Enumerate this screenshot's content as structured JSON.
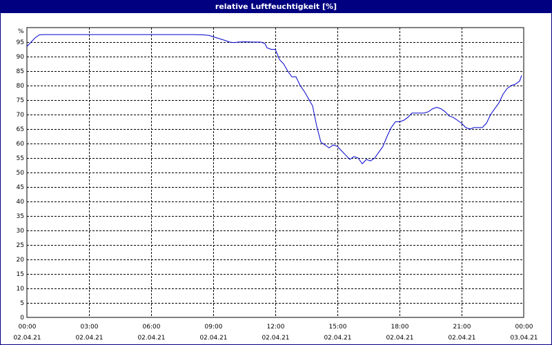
{
  "header": {
    "title": "relative Luftfeuchtigkeit [%]"
  },
  "chart_data": {
    "type": "line",
    "title": "relative Luftfeuchtigkeit [%]",
    "ylabel": "%",
    "ylim": [
      0,
      100
    ],
    "yticks": [
      0,
      5,
      10,
      15,
      20,
      25,
      30,
      35,
      40,
      45,
      50,
      55,
      60,
      65,
      70,
      75,
      80,
      85,
      90,
      95
    ],
    "xlim_hours": [
      0,
      24
    ],
    "xticks": [
      {
        "time": "00:00",
        "date": "02.04.21"
      },
      {
        "time": "03:00",
        "date": "02.04.21"
      },
      {
        "time": "06:00",
        "date": "02.04.21"
      },
      {
        "time": "09:00",
        "date": "02.04.21"
      },
      {
        "time": "12:00",
        "date": "02.04.21"
      },
      {
        "time": "15:00",
        "date": "02.04.21"
      },
      {
        "time": "18:00",
        "date": "02.04.21"
      },
      {
        "time": "21:00",
        "date": "02.04.21"
      },
      {
        "time": "00:00",
        "date": "03.04.21"
      }
    ],
    "grid": true,
    "line_color": "#0000cc",
    "series": [
      {
        "x_hours": [
          0.0,
          0.2,
          0.4,
          0.6,
          0.8,
          1.0,
          2.0,
          4.0,
          6.0,
          8.0,
          8.5,
          8.8,
          9.0,
          9.3,
          9.6,
          9.8,
          10.0,
          10.2,
          10.5,
          11.0,
          11.3,
          11.5,
          11.6,
          11.8,
          12.0,
          12.2,
          12.4,
          12.6,
          12.8,
          13.0,
          13.2,
          13.4,
          13.6,
          13.8,
          14.0,
          14.2,
          14.4,
          14.6,
          14.8,
          15.0,
          15.2,
          15.4,
          15.6,
          15.8,
          16.0,
          16.2,
          16.4,
          16.6,
          16.8,
          17.0,
          17.2,
          17.4,
          17.6,
          17.8,
          18.0,
          18.2,
          18.4,
          18.6,
          18.8,
          19.0,
          19.2,
          19.4,
          19.6,
          19.8,
          20.0,
          20.2,
          20.4,
          20.6,
          20.8,
          21.0,
          21.2,
          21.4,
          21.6,
          21.8,
          22.0,
          22.2,
          22.4,
          22.6,
          22.8,
          23.0,
          23.2,
          23.4,
          23.6,
          23.8,
          23.9
        ],
        "y": [
          93.5,
          95.0,
          96.5,
          97.5,
          97.6,
          97.6,
          97.6,
          97.6,
          97.6,
          97.6,
          97.5,
          97.3,
          96.8,
          96.2,
          95.5,
          95.0,
          94.8,
          95.0,
          95.1,
          95.0,
          95.0,
          94.5,
          93.0,
          92.5,
          92.5,
          89.0,
          87.5,
          85.0,
          83.0,
          83.0,
          80.0,
          78.0,
          75.5,
          73.0,
          66.0,
          60.5,
          59.5,
          58.5,
          59.5,
          59.0,
          57.5,
          56.0,
          54.5,
          55.5,
          55.0,
          53.0,
          54.5,
          54.0,
          55.0,
          57.0,
          59.0,
          62.5,
          65.5,
          67.5,
          67.5,
          68.0,
          69.0,
          70.5,
          70.5,
          70.5,
          70.5,
          71.0,
          72.0,
          72.5,
          72.0,
          71.0,
          69.5,
          69.0,
          68.0,
          67.0,
          65.5,
          65.0,
          65.5,
          65.5,
          65.5,
          67.0,
          70.0,
          72.0,
          74.0,
          77.0,
          79.0,
          80.0,
          80.5,
          81.5,
          83.5
        ]
      }
    ]
  }
}
